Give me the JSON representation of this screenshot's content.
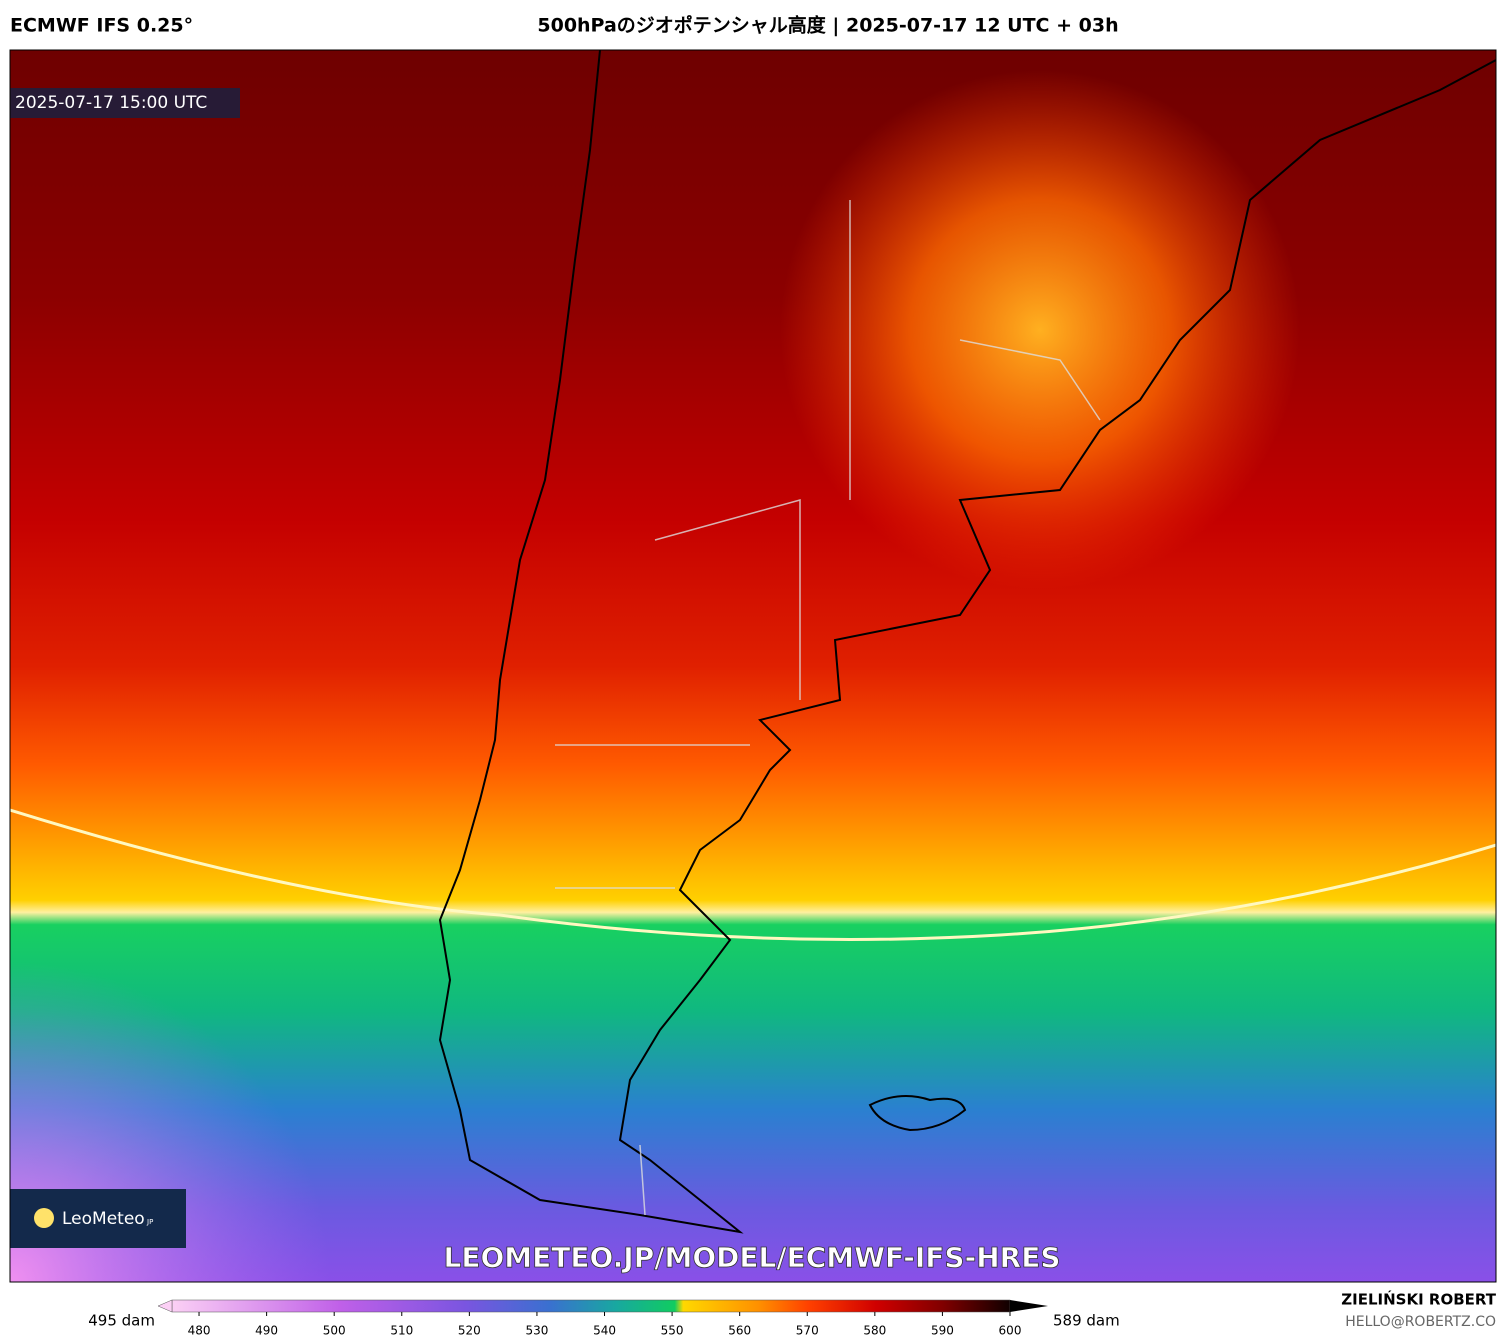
{
  "header": {
    "model": "ECMWF IFS 0.25°",
    "title": "500hPaのジオポテンシャル高度 | 2025-07-17 12 UTC + 03h"
  },
  "map": {
    "valid_time": "2025-07-17 15:00 UTC",
    "logo": "LeoMeteo",
    "logo_suffix": "JP",
    "watermark": "LEOMETEO.JP/MODEL/ECMWF-IFS-HRES"
  },
  "colorbar": {
    "min_label": "495 dam",
    "max_label": "589 dam",
    "range": [
      476,
      600
    ],
    "ticks": [
      480,
      490,
      500,
      510,
      520,
      530,
      540,
      550,
      560,
      570,
      580,
      590,
      600
    ]
  },
  "footer": {
    "author": "ZIELIŃSKI ROBERT",
    "email": "HELLO@ROBERTZ.CO"
  }
}
